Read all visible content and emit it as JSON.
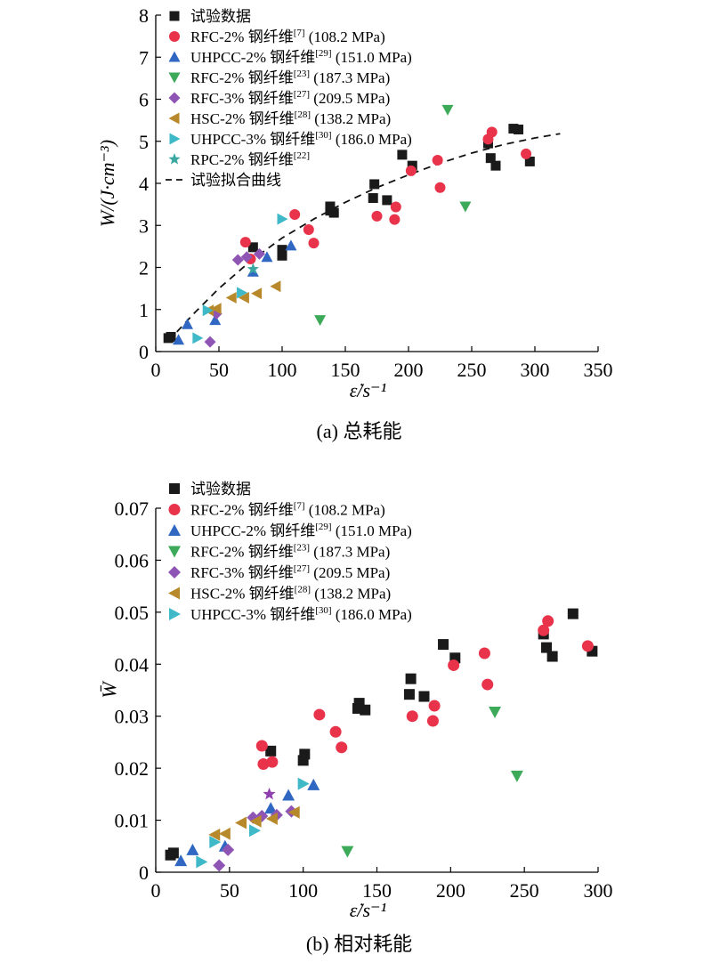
{
  "chart_data": [
    {
      "type": "scatter",
      "caption": "(a) 总耗能",
      "xlabel": "ε̇/s⁻¹",
      "ylabel": "W/(J·cm⁻³)",
      "xlim": [
        0,
        350
      ],
      "ylim": [
        0,
        8
      ],
      "xticks": [
        "0",
        "50",
        "100",
        "150",
        "200",
        "250",
        "300",
        "350"
      ],
      "yticks": [
        "0",
        "1",
        "2",
        "3",
        "4",
        "5",
        "6",
        "7",
        "8"
      ],
      "legend_placement": "top-left",
      "series": [
        {
          "name": "试验数据",
          "marker": "square",
          "color": "#1a1a1a",
          "points": [
            [
              10,
              0.32
            ],
            [
              12,
              0.35
            ],
            [
              77,
              2.48
            ],
            [
              100,
              2.28
            ],
            [
              100,
              2.42
            ],
            [
              138,
              3.45
            ],
            [
              138,
              3.35
            ],
            [
              141,
              3.3
            ],
            [
              172,
              3.65
            ],
            [
              173,
              3.98
            ],
            [
              183,
              3.6
            ],
            [
              195,
              4.68
            ],
            [
              203,
              4.42
            ],
            [
              263,
              4.95
            ],
            [
              265,
              4.6
            ],
            [
              269,
              4.42
            ],
            [
              283,
              5.3
            ],
            [
              287,
              5.28
            ],
            [
              296,
              4.52
            ]
          ]
        },
        {
          "name": "RFC-2% 钢纤维",
          "ref": "[7]",
          "strength": "(108.2 MPa)",
          "marker": "circle",
          "color": "#e8334a",
          "points": [
            [
              71,
              2.6
            ],
            [
              75,
              2.2
            ],
            [
              110,
              3.26
            ],
            [
              121,
              2.9
            ],
            [
              125,
              2.58
            ],
            [
              175,
              3.22
            ],
            [
              189,
              3.14
            ],
            [
              190,
              3.44
            ],
            [
              202,
              4.3
            ],
            [
              223,
              4.55
            ],
            [
              225,
              3.9
            ],
            [
              263,
              5.05
            ],
            [
              266,
              5.22
            ],
            [
              293,
              4.7
            ]
          ]
        },
        {
          "name": "UHPCC-2% 钢纤维",
          "ref": "[29]",
          "strength": "(151.0 MPa)",
          "marker": "triangle-up",
          "color": "#2f67c2",
          "points": [
            [
              18,
              0.28
            ],
            [
              25,
              0.65
            ],
            [
              47,
              0.75
            ],
            [
              77,
              1.9
            ],
            [
              88,
              2.25
            ],
            [
              107,
              2.52
            ]
          ]
        },
        {
          "name": "RFC-2% 钢纤维",
          "ref": "[23]",
          "strength": "(187.3 MPa)",
          "marker": "triangle-down",
          "color": "#3daa5a",
          "points": [
            [
              130,
              0.75
            ],
            [
              231,
              5.75
            ],
            [
              245,
              3.45
            ]
          ]
        },
        {
          "name": "RFC-3% 钢纤维",
          "ref": "[27]",
          "strength": "(209.5 MPa)",
          "marker": "diamond",
          "color": "#8f55b4",
          "points": [
            [
              43,
              0.23
            ],
            [
              48,
              0.9
            ],
            [
              65,
              2.18
            ],
            [
              72,
              2.25
            ],
            [
              82,
              2.32
            ]
          ]
        },
        {
          "name": "HSC-2% 钢纤维",
          "ref": "[28]",
          "strength": "(138.2 MPa)",
          "marker": "triangle-left",
          "color": "#b8892b",
          "points": [
            [
              42,
              0.98
            ],
            [
              48,
              1.02
            ],
            [
              60,
              1.28
            ],
            [
              70,
              1.28
            ],
            [
              80,
              1.38
            ],
            [
              95,
              1.55
            ]
          ]
        },
        {
          "name": "UHPCC-3% 钢纤维",
          "ref": "[30]",
          "strength": "(186.0 MPa)",
          "marker": "triangle-right",
          "color": "#3fb8c8",
          "points": [
            [
              33,
              0.32
            ],
            [
              41,
              0.98
            ],
            [
              68,
              1.4
            ],
            [
              100,
              3.15
            ]
          ]
        },
        {
          "name": "RPC-2% 钢纤维",
          "ref": "[22]",
          "strength": "",
          "marker": "star",
          "color": "#3aa8a0",
          "points": [
            [
              77,
              1.96
            ]
          ]
        }
      ],
      "fit": {
        "name": "试验拟合曲线",
        "style": "dashed",
        "points": [
          [
            10,
            0.25
          ],
          [
            30,
            0.9
          ],
          [
            50,
            1.5
          ],
          [
            75,
            2.15
          ],
          [
            100,
            2.7
          ],
          [
            125,
            3.15
          ],
          [
            150,
            3.55
          ],
          [
            175,
            3.9
          ],
          [
            200,
            4.2
          ],
          [
            225,
            4.48
          ],
          [
            250,
            4.72
          ],
          [
            275,
            4.92
          ],
          [
            300,
            5.08
          ],
          [
            320,
            5.18
          ]
        ]
      }
    },
    {
      "type": "scatter",
      "caption": "(b) 相对耗能",
      "xlabel": "ε̇/s⁻¹",
      "ylabel": "W̄",
      "xlim": [
        0,
        300
      ],
      "ylim": [
        0,
        0.07
      ],
      "xticks": [
        "0",
        "50",
        "100",
        "150",
        "200",
        "250",
        "300"
      ],
      "yticks": [
        "0",
        "0.01",
        "0.02",
        "0.03",
        "0.04",
        "0.05",
        "0.06",
        "0.07"
      ],
      "legend_placement": "top-left",
      "series": [
        {
          "name": "试验数据",
          "marker": "square",
          "color": "#1a1a1a",
          "points": [
            [
              10,
              0.0033
            ],
            [
              12,
              0.0037
            ],
            [
              78,
              0.0233
            ],
            [
              100,
              0.0215
            ],
            [
              101,
              0.0227
            ],
            [
              137,
              0.0315
            ],
            [
              138,
              0.0325
            ],
            [
              142,
              0.0312
            ],
            [
              172,
              0.0342
            ],
            [
              173,
              0.0372
            ],
            [
              182,
              0.0338
            ],
            [
              195,
              0.0438
            ],
            [
              203,
              0.0412
            ],
            [
              263,
              0.0458
            ],
            [
              265,
              0.0432
            ],
            [
              269,
              0.0415
            ],
            [
              283,
              0.0497
            ],
            [
              296,
              0.0425
            ]
          ]
        },
        {
          "name": "RFC-2% 钢纤维",
          "ref": "[7]",
          "strength": "(108.2 MPa)",
          "marker": "circle",
          "color": "#e8334a",
          "points": [
            [
              72,
              0.0243
            ],
            [
              73,
              0.0208
            ],
            [
              79,
              0.0212
            ],
            [
              111,
              0.0303
            ],
            [
              122,
              0.027
            ],
            [
              126,
              0.024
            ],
            [
              174,
              0.03
            ],
            [
              188,
              0.0291
            ],
            [
              189,
              0.032
            ],
            [
              202,
              0.0398
            ],
            [
              223,
              0.0421
            ],
            [
              225,
              0.0361
            ],
            [
              263,
              0.0465
            ],
            [
              266,
              0.0483
            ],
            [
              293,
              0.0435
            ]
          ]
        },
        {
          "name": "UHPCC-2% 钢纤维",
          "ref": "[29]",
          "strength": "(151.0 MPa)",
          "marker": "triangle-up",
          "color": "#2f67c2",
          "points": [
            [
              17,
              0.0022
            ],
            [
              25,
              0.0043
            ],
            [
              47,
              0.005
            ],
            [
              78,
              0.0123
            ],
            [
              90,
              0.0148
            ],
            [
              107,
              0.0168
            ]
          ]
        },
        {
          "name": "RFC-2% 钢纤维",
          "ref": "[23]",
          "strength": "(187.3 MPa)",
          "marker": "triangle-down",
          "color": "#3daa5a",
          "points": [
            [
              130,
              0.004
            ],
            [
              230,
              0.0308
            ],
            [
              245,
              0.0185
            ]
          ]
        },
        {
          "name": "RFC-3% 钢纤维",
          "ref": "[27]",
          "strength": "(209.5 MPa)",
          "marker": "diamond",
          "color": "#8f55b4",
          "points": [
            [
              43,
              0.0013
            ],
            [
              49,
              0.0043
            ],
            [
              66,
              0.0105
            ],
            [
              72,
              0.0108
            ],
            [
              82,
              0.011
            ],
            [
              92,
              0.0117
            ]
          ]
        },
        {
          "name": "HSC-2% 钢纤维",
          "ref": "[28]",
          "strength": "(138.2 MPa)",
          "marker": "triangle-left",
          "color": "#b8892b",
          "points": [
            [
              40,
              0.0072
            ],
            [
              47,
              0.0074
            ],
            [
              58,
              0.0095
            ],
            [
              68,
              0.0098
            ],
            [
              79,
              0.0103
            ],
            [
              94,
              0.0115
            ]
          ]
        },
        {
          "name": "UHPCC-3% 钢纤维",
          "ref": "[30]",
          "strength": "(186.0 MPa)",
          "marker": "triangle-right",
          "color": "#3fb8c8",
          "points": [
            [
              31,
              0.002
            ],
            [
              40,
              0.0058
            ],
            [
              67,
              0.008
            ],
            [
              100,
              0.017
            ]
          ]
        },
        {
          "name": "RPC-2% 钢纤维",
          "ref": "[22]",
          "strength": "",
          "marker": "star",
          "color": "#8f3fb0",
          "in_legend": false,
          "points": [
            [
              77,
              0.015
            ]
          ]
        }
      ]
    }
  ]
}
